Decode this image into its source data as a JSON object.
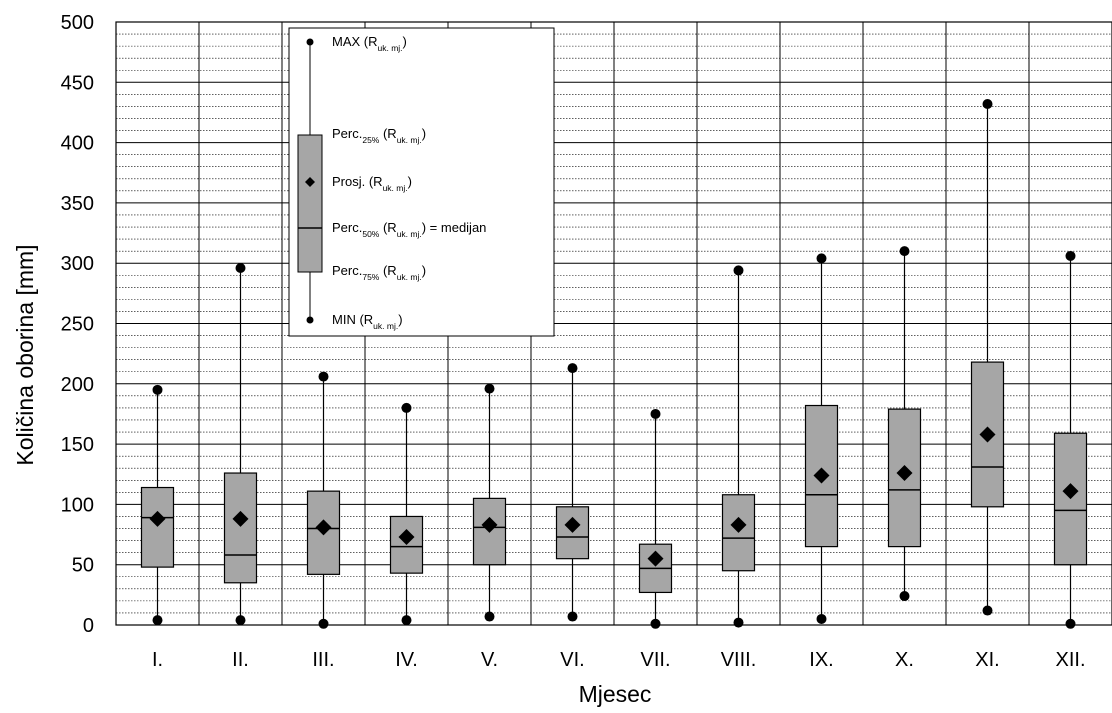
{
  "chart_data": {
    "type": "boxplot",
    "title": "",
    "xlabel": "Mjesec",
    "ylabel": "Količina oborina [mm]",
    "ylim": [
      0,
      500
    ],
    "yticks": [
      0,
      50,
      100,
      150,
      200,
      250,
      300,
      350,
      400,
      450,
      500
    ],
    "minor_grid_step": 10,
    "grid": true,
    "categories": [
      "I.",
      "II.",
      "III.",
      "IV.",
      "V.",
      "VI.",
      "VII.",
      "VIII.",
      "IX.",
      "X.",
      "XI.",
      "XII."
    ],
    "stats": {
      "max": [
        195,
        296,
        206,
        180,
        196,
        213,
        175,
        294,
        304,
        310,
        432,
        306
      ],
      "p75": [
        114,
        126,
        111,
        90,
        105,
        98,
        67,
        108,
        182,
        179,
        218,
        159
      ],
      "mean": [
        88,
        88,
        81,
        73,
        83,
        83,
        55,
        83,
        124,
        126,
        158,
        111
      ],
      "median": [
        89,
        58,
        80,
        65,
        81,
        73,
        47,
        72,
        108,
        112,
        131,
        95
      ],
      "p25": [
        48,
        35,
        42,
        43,
        50,
        55,
        27,
        45,
        65,
        65,
        98,
        50
      ],
      "min": [
        4,
        4,
        1,
        4,
        7,
        7,
        1,
        2,
        5,
        24,
        12,
        1
      ]
    },
    "colors": {
      "box": "#a6a6a6",
      "line": "#000000",
      "grid": "#000000"
    },
    "legend": {
      "position": "top-left",
      "items": [
        {
          "main": "MAX (R",
          "sub": "uk. mj.",
          "tail": ")"
        },
        {
          "main": "Perc.",
          "sub1": "25%",
          "mid": " (R",
          "sub": "uk. mj.",
          "tail": ")"
        },
        {
          "main": "Prosj. (R",
          "sub": "uk. mj.",
          "tail": ")"
        },
        {
          "main": "Perc.",
          "sub1": "50%",
          "mid": " (R",
          "sub": "uk. mj.",
          "tail": ") = medijan"
        },
        {
          "main": "Perc.",
          "sub1": "75%",
          "mid": " (R",
          "sub": "uk. mj.",
          "tail": ")"
        },
        {
          "main": "MIN (R",
          "sub": "uk. mj.",
          "tail": ")"
        }
      ]
    }
  }
}
